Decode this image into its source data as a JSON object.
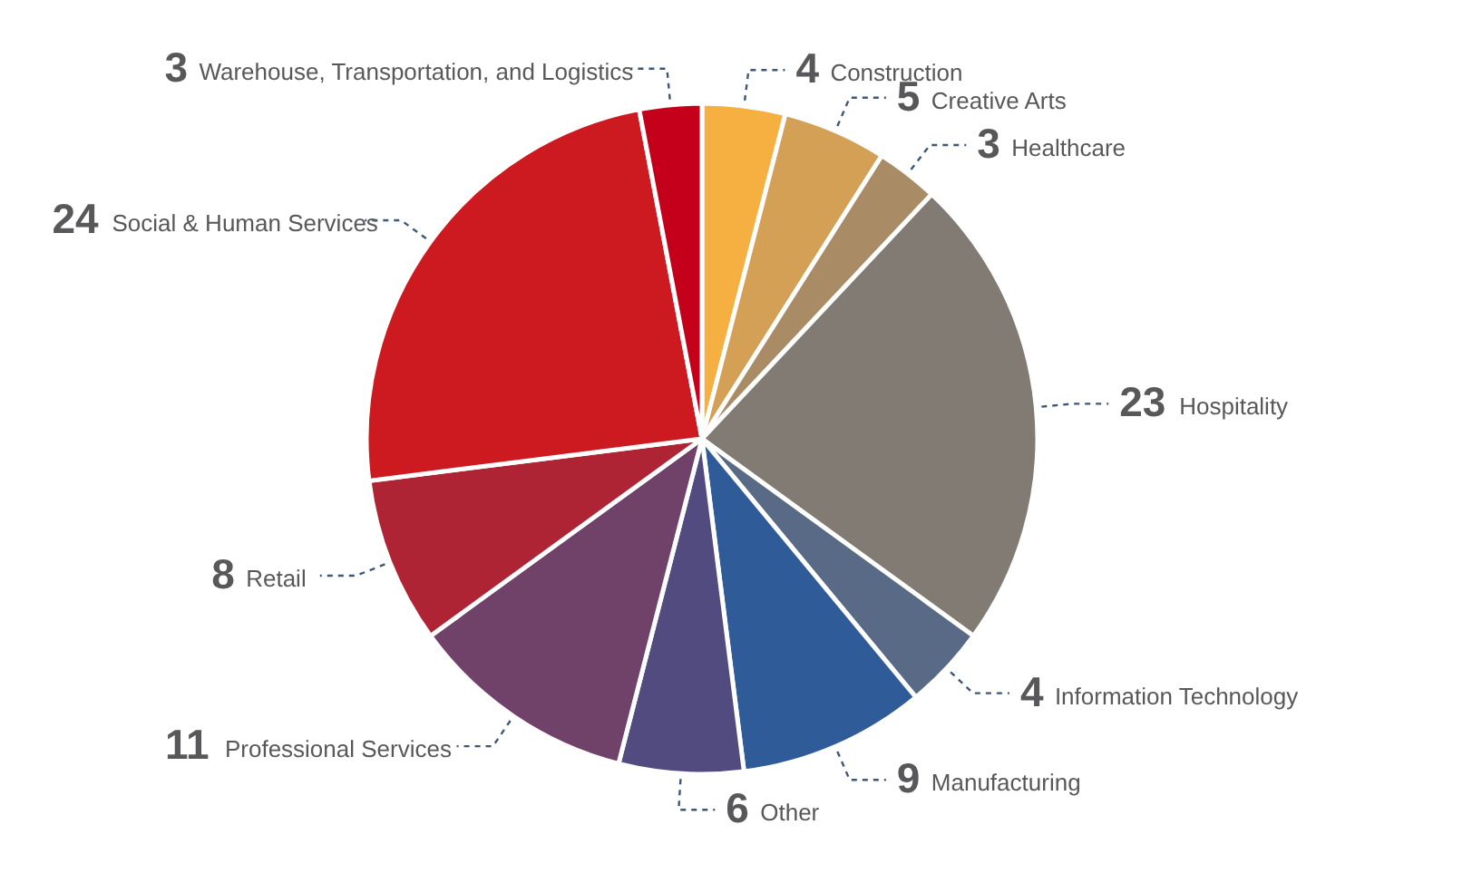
{
  "chart_data": {
    "type": "pie",
    "categories": [
      "Construction",
      "Creative Arts",
      "Healthcare",
      "Hospitality",
      "Information Technology",
      "Manufacturing",
      "Other",
      "Professional Services",
      "Retail",
      "Social & Human Services",
      "Warehouse, Transportation, and Logistics"
    ],
    "values": [
      4,
      5,
      3,
      23,
      4,
      9,
      6,
      11,
      8,
      24,
      3
    ],
    "colors": [
      "#f6b042",
      "#d4a055",
      "#a98b66",
      "#817b74",
      "#586a85",
      "#2f5c99",
      "#524b80",
      "#704169",
      "#ae2434",
      "#cd1a20",
      "#c5001a"
    ],
    "data_labels": true
  }
}
